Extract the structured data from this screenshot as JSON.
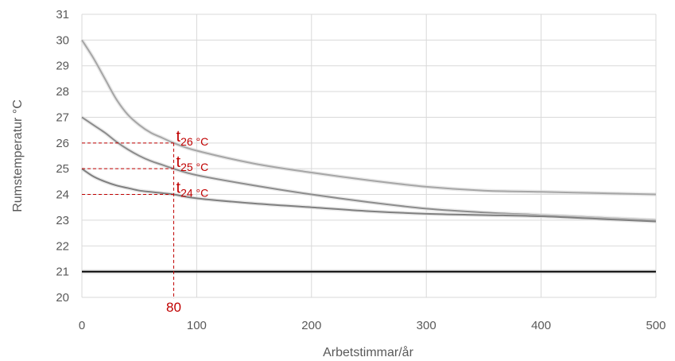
{
  "chart_data": {
    "type": "line",
    "title": "",
    "xlabel": "Arbetstimmar/år",
    "ylabel": "Rumstemperatur  °C",
    "xlim": [
      0,
      500
    ],
    "ylim": [
      20,
      31
    ],
    "xticks": [
      "0",
      "100",
      "200",
      "300",
      "400",
      "500"
    ],
    "yticks": [
      "20",
      "21",
      "22",
      "23",
      "24",
      "25",
      "26",
      "27",
      "28",
      "29",
      "30",
      "31"
    ],
    "grid": true,
    "legend": "none",
    "series": [
      {
        "x": [
          0,
          10,
          20,
          30,
          40,
          50,
          60,
          70,
          80,
          100,
          150,
          200,
          250,
          300,
          350,
          400,
          450,
          500
        ],
        "y": [
          30,
          29.3,
          28.5,
          27.7,
          27.1,
          26.7,
          26.4,
          26.2,
          26.0,
          25.7,
          25.2,
          24.85,
          24.55,
          24.3,
          24.15,
          24.1,
          24.05,
          24.0
        ],
        "color": "#a6a6a6"
      },
      {
        "x": [
          0,
          10,
          20,
          30,
          40,
          50,
          60,
          70,
          80,
          100,
          150,
          200,
          250,
          300,
          350,
          400,
          450,
          500
        ],
        "y": [
          27,
          26.7,
          26.4,
          26.05,
          25.75,
          25.5,
          25.3,
          25.15,
          25.0,
          24.75,
          24.35,
          24.0,
          23.7,
          23.45,
          23.3,
          23.2,
          23.1,
          23.0
        ],
        "color": "#8c8c8c"
      },
      {
        "x": [
          0,
          10,
          20,
          30,
          40,
          50,
          60,
          70,
          80,
          100,
          150,
          200,
          250,
          300,
          350,
          400,
          450,
          500
        ],
        "y": [
          25,
          24.7,
          24.5,
          24.35,
          24.25,
          24.15,
          24.1,
          24.05,
          24.0,
          23.85,
          23.65,
          23.5,
          23.35,
          23.25,
          23.2,
          23.15,
          23.05,
          22.95
        ],
        "color": "#7f7f7f"
      }
    ],
    "reference_line": {
      "y": 21,
      "color": "#000000"
    },
    "annotations": {
      "color": "#c00000",
      "vline_x": 80,
      "vline_label": "80",
      "hlines": [
        {
          "y": 26,
          "label_main": "t",
          "label_sub": "26 °C"
        },
        {
          "y": 25,
          "label_main": "t",
          "label_sub": "25 °C"
        },
        {
          "y": 24,
          "label_main": "t",
          "label_sub": "24 °C"
        }
      ]
    },
    "colors": {
      "grid": "#d9d9d9",
      "text": "#595959"
    }
  }
}
